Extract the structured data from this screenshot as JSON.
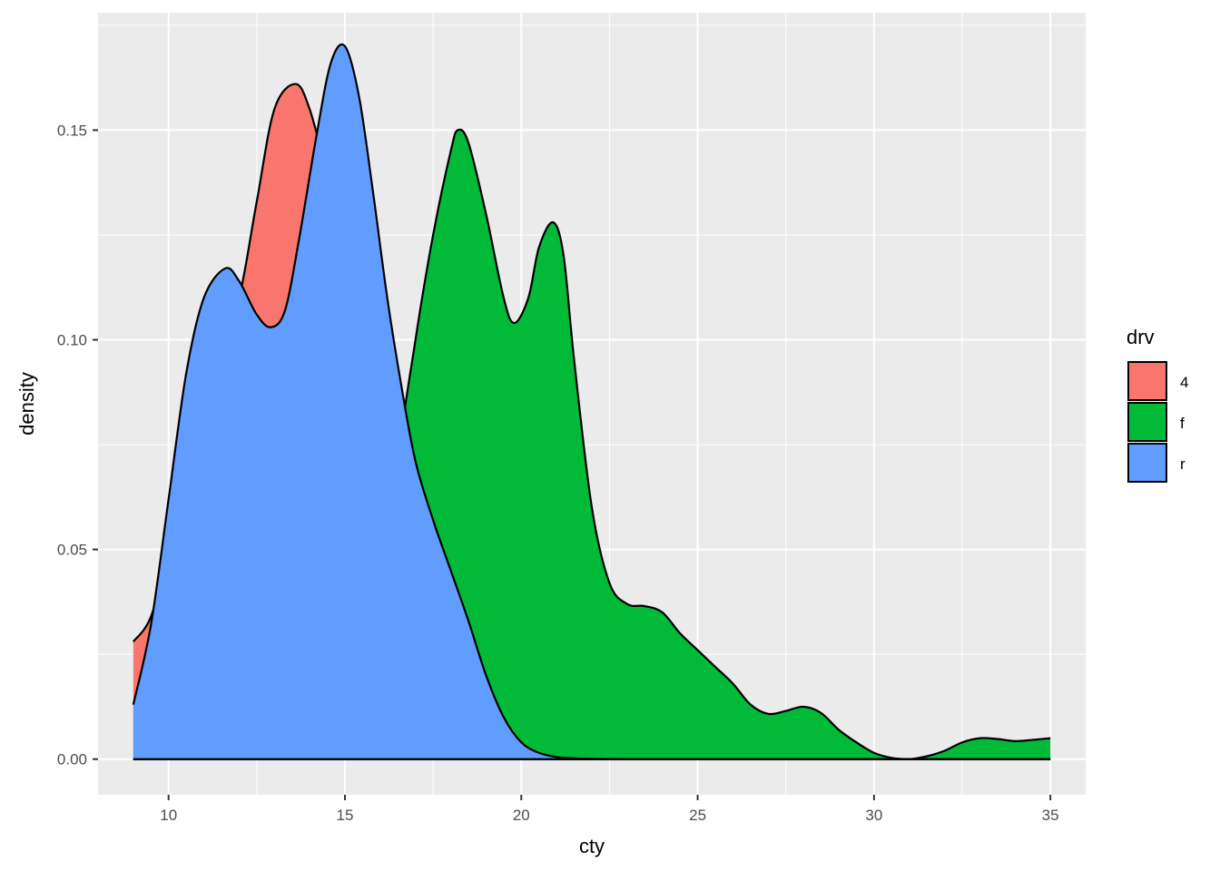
{
  "chart_data": {
    "type": "area",
    "subtype": "density",
    "xlabel": "cty",
    "ylabel": "density",
    "xlim": [
      8,
      36
    ],
    "ylim": [
      -0.0085,
      0.178
    ],
    "x_ticks": [
      10,
      15,
      20,
      25,
      30,
      35
    ],
    "y_ticks": [
      0.0,
      0.05,
      0.1,
      0.15
    ],
    "x_tick_labels": [
      "10",
      "15",
      "20",
      "25",
      "30",
      "35"
    ],
    "y_tick_labels": [
      "0.00",
      "0.05",
      "0.10",
      "0.15"
    ],
    "grid": true,
    "legend": {
      "title": "drv",
      "position": "right"
    },
    "series": [
      {
        "name": "4",
        "color": "#F8766D",
        "x": [
          9,
          9.5,
          10,
          10.5,
          11,
          11.5,
          12,
          12.5,
          13,
          13.6,
          14,
          14.5,
          15,
          15.5,
          16,
          16.5,
          17,
          17.5,
          18,
          18.5,
          19,
          19.5,
          20,
          20.5,
          21,
          21.5,
          22
        ],
        "values": [
          0.028,
          0.034,
          0.05,
          0.072,
          0.09,
          0.1,
          0.11,
          0.133,
          0.155,
          0.161,
          0.155,
          0.14,
          0.13,
          0.12,
          0.1,
          0.075,
          0.055,
          0.035,
          0.022,
          0.012,
          0.006,
          0.003,
          0.001,
          0.0005,
          0.0002,
          0.0001,
          0.0
        ]
      },
      {
        "name": "f",
        "color": "#00BA38",
        "x": [
          9,
          15,
          16,
          16.5,
          17,
          17.5,
          18,
          18.2,
          18.5,
          19,
          19.5,
          19.8,
          20.2,
          20.5,
          20.9,
          21.2,
          21.5,
          22,
          22.5,
          23,
          23.5,
          24,
          24.5,
          25,
          25.5,
          26,
          26.5,
          27,
          27.5,
          28,
          28.5,
          29,
          29.5,
          30,
          30.5,
          31,
          31.5,
          32,
          32.5,
          33,
          33.5,
          34,
          34.5,
          35
        ],
        "values": [
          0,
          0,
          0.02,
          0.07,
          0.1,
          0.125,
          0.145,
          0.15,
          0.147,
          0.13,
          0.11,
          0.104,
          0.11,
          0.122,
          0.128,
          0.12,
          0.095,
          0.06,
          0.042,
          0.037,
          0.0365,
          0.035,
          0.03,
          0.026,
          0.022,
          0.018,
          0.013,
          0.0108,
          0.0115,
          0.0125,
          0.011,
          0.007,
          0.004,
          0.0015,
          0.0003,
          0.0,
          0.0007,
          0.002,
          0.004,
          0.005,
          0.0048,
          0.0043,
          0.0046,
          0.005
        ]
      },
      {
        "name": "r",
        "color": "#619CFF",
        "x": [
          9,
          9.5,
          10,
          10.5,
          11,
          11.6,
          12,
          12.5,
          12.9,
          13.3,
          13.7,
          14.2,
          14.6,
          15,
          15.4,
          15.8,
          16.2,
          16.6,
          17,
          17.5,
          18,
          18.5,
          19,
          19.5,
          20,
          20.5,
          21,
          21.5,
          22,
          23,
          24,
          26,
          28,
          30,
          32,
          35
        ],
        "values": [
          0.013,
          0.032,
          0.062,
          0.092,
          0.11,
          0.117,
          0.114,
          0.106,
          0.103,
          0.107,
          0.124,
          0.149,
          0.166,
          0.17,
          0.158,
          0.135,
          0.11,
          0.089,
          0.071,
          0.057,
          0.045,
          0.033,
          0.02,
          0.01,
          0.004,
          0.0015,
          0.0005,
          0.0002,
          0.0001,
          0.0,
          0.0,
          0.0,
          0.0,
          0.0,
          0.0,
          0.0
        ]
      }
    ]
  }
}
